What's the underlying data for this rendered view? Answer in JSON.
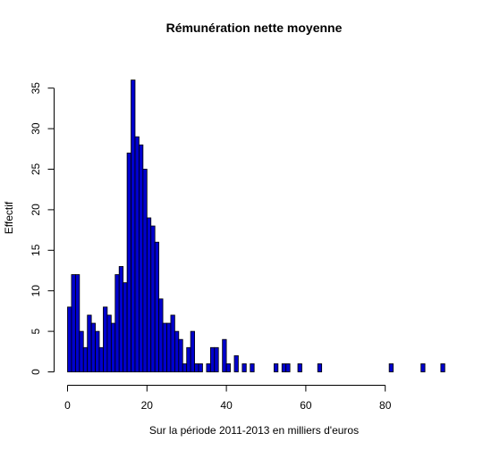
{
  "chart_data": {
    "type": "bar",
    "title": "Rémunération nette moyenne",
    "xlabel": "Sur la période 2011-2013 en milliers d'euros",
    "ylabel": "Effectif",
    "bin_width": 1,
    "x_start": 0,
    "values": [
      8,
      12,
      12,
      5,
      3,
      7,
      6,
      5,
      3,
      8,
      7,
      6,
      12,
      13,
      11,
      27,
      36,
      29,
      28,
      25,
      19,
      18,
      16,
      9,
      6,
      6,
      7,
      5,
      4,
      1,
      3,
      5,
      1,
      1,
      0,
      1,
      3,
      3,
      0,
      4,
      1,
      0,
      2,
      0,
      1,
      0,
      1,
      0,
      0,
      0,
      0,
      0,
      1,
      0,
      1,
      1,
      0,
      0,
      1,
      0,
      0,
      0,
      0,
      1,
      0,
      0,
      0,
      0,
      0,
      0,
      0,
      0,
      0,
      0,
      0,
      0,
      0,
      0,
      0,
      0,
      0,
      1,
      0,
      0,
      0,
      0,
      0,
      0,
      0,
      1,
      0,
      0,
      0,
      0,
      1
    ],
    "xlim": [
      0,
      95
    ],
    "ylim": [
      0,
      36
    ],
    "xticks": [
      "0",
      "20",
      "40",
      "60",
      "80"
    ],
    "yticks": [
      "0",
      "5",
      "10",
      "15",
      "20",
      "25",
      "30",
      "35"
    ],
    "bar_color": "#0000CD",
    "bar_stroke": "#000000",
    "grid": false,
    "legend": "none"
  }
}
